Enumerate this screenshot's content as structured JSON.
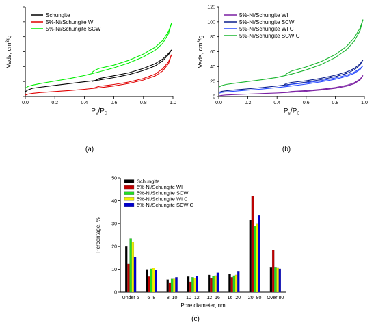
{
  "chart_data": [
    {
      "type": "line",
      "panel_label": "(a)",
      "xlabel_base": "P",
      "xlabel_sub1": "s",
      "xlabel_sep": "/P",
      "xlabel_sub2": "0",
      "ylabel_base": "Vads, cm",
      "ylabel_sup": "3",
      "ylabel_tail": "/g",
      "xlim": [
        0,
        1.0
      ],
      "ylim": [
        0,
        60
      ],
      "xticks": [
        "0.0",
        "0.2",
        "0.4",
        "0.6",
        "0.8",
        "1.0"
      ],
      "yticks": [],
      "legend_position": "top-left",
      "series": [
        {
          "name": "Schungite",
          "color": "#000000",
          "adsorption": [
            [
              0.0,
              3.2
            ],
            [
              0.02,
              4.5
            ],
            [
              0.05,
              5.5
            ],
            [
              0.1,
              6.2
            ],
            [
              0.2,
              7.4
            ],
            [
              0.3,
              8.6
            ],
            [
              0.4,
              9.8
            ],
            [
              0.5,
              11.0
            ],
            [
              0.6,
              12.6
            ],
            [
              0.7,
              14.6
            ],
            [
              0.8,
              17.4
            ],
            [
              0.88,
              20.5
            ],
            [
              0.93,
              23.8
            ],
            [
              0.97,
              28.0
            ],
            [
              0.99,
              31.2
            ]
          ],
          "desorption": [
            [
              0.99,
              31.2
            ],
            [
              0.97,
              28.8
            ],
            [
              0.93,
              25.0
            ],
            [
              0.88,
              22.0
            ],
            [
              0.8,
              18.8
            ],
            [
              0.7,
              15.8
            ],
            [
              0.6,
              13.9
            ],
            [
              0.5,
              12.0
            ],
            [
              0.47,
              10.5
            ],
            [
              0.45,
              10.0
            ]
          ]
        },
        {
          "name": "5%-Ni/Schungite WI",
          "color": "#e00000",
          "adsorption": [
            [
              0.0,
              0.9
            ],
            [
              0.02,
              1.6
            ],
            [
              0.05,
              2.1
            ],
            [
              0.1,
              2.6
            ],
            [
              0.2,
              3.3
            ],
            [
              0.3,
              4.0
            ],
            [
              0.4,
              4.8
            ],
            [
              0.5,
              5.8
            ],
            [
              0.6,
              7.0
            ],
            [
              0.7,
              8.7
            ],
            [
              0.8,
              11.0
            ],
            [
              0.88,
              13.8
            ],
            [
              0.93,
              17.0
            ],
            [
              0.97,
              22.0
            ],
            [
              0.99,
              28.0
            ]
          ],
          "desorption": [
            [
              0.99,
              28.0
            ],
            [
              0.97,
              23.2
            ],
            [
              0.93,
              18.5
            ],
            [
              0.88,
              15.0
            ],
            [
              0.8,
              12.0
            ],
            [
              0.7,
              9.6
            ],
            [
              0.6,
              8.0
            ],
            [
              0.5,
              6.8
            ],
            [
              0.47,
              5.8
            ],
            [
              0.45,
              5.3
            ]
          ]
        },
        {
          "name": "5%-Ni/Schungite SCW",
          "color": "#00ee00",
          "adsorption": [
            [
              0.0,
              5.5
            ],
            [
              0.02,
              6.8
            ],
            [
              0.05,
              7.6
            ],
            [
              0.1,
              8.6
            ],
            [
              0.2,
              10.3
            ],
            [
              0.3,
              12.0
            ],
            [
              0.4,
              14.0
            ],
            [
              0.5,
              16.5
            ],
            [
              0.6,
              19.2
            ],
            [
              0.7,
              22.4
            ],
            [
              0.8,
              26.5
            ],
            [
              0.88,
              31.0
            ],
            [
              0.93,
              35.5
            ],
            [
              0.97,
              42.0
            ],
            [
              0.99,
              49.0
            ]
          ],
          "desorption": [
            [
              0.99,
              49.0
            ],
            [
              0.97,
              43.5
            ],
            [
              0.93,
              37.5
            ],
            [
              0.88,
              33.0
            ],
            [
              0.8,
              28.4
            ],
            [
              0.7,
              24.2
            ],
            [
              0.6,
              21.0
            ],
            [
              0.5,
              18.8
            ],
            [
              0.47,
              17.5
            ],
            [
              0.45,
              16.0
            ]
          ]
        }
      ]
    },
    {
      "type": "line",
      "panel_label": "(b)",
      "xlabel_base": "P",
      "xlabel_sub1": "s",
      "xlabel_sep": "/P",
      "xlabel_sub2": "0",
      "ylabel_base": "Vads, cm",
      "ylabel_sup": "3",
      "ylabel_tail": "/g",
      "xlim": [
        0,
        1.0
      ],
      "ylim": [
        0,
        120
      ],
      "xticks": [
        "0.0",
        "0.2",
        "0.4",
        "0.6",
        "0.8",
        "1.0"
      ],
      "yticks": [
        "0",
        "20",
        "40",
        "60",
        "80",
        "100",
        "120"
      ],
      "legend_position": "top-left",
      "series": [
        {
          "name": "5%-Ni/Schungite WI",
          "color": "#7a1fa2",
          "adsorption": [
            [
              0.0,
              0.9
            ],
            [
              0.02,
              1.5
            ],
            [
              0.05,
              2.0
            ],
            [
              0.1,
              2.5
            ],
            [
              0.2,
              3.2
            ],
            [
              0.3,
              3.9
            ],
            [
              0.4,
              4.7
            ],
            [
              0.5,
              5.7
            ],
            [
              0.6,
              6.9
            ],
            [
              0.7,
              8.6
            ],
            [
              0.8,
              10.9
            ],
            [
              0.88,
              13.8
            ],
            [
              0.93,
              17.0
            ],
            [
              0.97,
              22.0
            ],
            [
              0.99,
              28.0
            ]
          ],
          "desorption": [
            [
              0.99,
              28.0
            ],
            [
              0.97,
              23.0
            ],
            [
              0.93,
              18.3
            ],
            [
              0.88,
              15.0
            ],
            [
              0.8,
              12.0
            ],
            [
              0.7,
              9.5
            ],
            [
              0.6,
              7.9
            ],
            [
              0.5,
              6.7
            ],
            [
              0.47,
              5.8
            ],
            [
              0.45,
              5.3
            ]
          ]
        },
        {
          "name": "5%-Ni/Schungite SCW",
          "color": "#0a1e8c",
          "adsorption": [
            [
              0.0,
              5.5
            ],
            [
              0.02,
              6.8
            ],
            [
              0.05,
              7.6
            ],
            [
              0.1,
              8.6
            ],
            [
              0.2,
              10.3
            ],
            [
              0.3,
              12.0
            ],
            [
              0.4,
              14.0
            ],
            [
              0.5,
              16.5
            ],
            [
              0.6,
              19.2
            ],
            [
              0.7,
              22.4
            ],
            [
              0.8,
              26.5
            ],
            [
              0.88,
              31.0
            ],
            [
              0.93,
              35.5
            ],
            [
              0.97,
              42.0
            ],
            [
              0.99,
              49.0
            ]
          ],
          "desorption": [
            [
              0.99,
              49.0
            ],
            [
              0.97,
              43.5
            ],
            [
              0.93,
              37.5
            ],
            [
              0.88,
              33.0
            ],
            [
              0.8,
              28.4
            ],
            [
              0.7,
              24.2
            ],
            [
              0.6,
              21.0
            ],
            [
              0.5,
              18.8
            ],
            [
              0.47,
              17.5
            ],
            [
              0.45,
              16.0
            ]
          ]
        },
        {
          "name": "5%-Ni/Schungite WI C",
          "color": "#2a4bff",
          "adsorption": [
            [
              0.0,
              4.2
            ],
            [
              0.02,
              5.4
            ],
            [
              0.05,
              6.1
            ],
            [
              0.1,
              7.0
            ],
            [
              0.2,
              8.5
            ],
            [
              0.3,
              10.0
            ],
            [
              0.4,
              11.8
            ],
            [
              0.5,
              14.0
            ],
            [
              0.6,
              16.5
            ],
            [
              0.7,
              19.5
            ],
            [
              0.8,
              23.0
            ],
            [
              0.88,
              27.0
            ],
            [
              0.93,
              31.0
            ],
            [
              0.97,
              36.0
            ],
            [
              0.99,
              41.0
            ]
          ],
          "desorption": [
            [
              0.99,
              41.0
            ],
            [
              0.97,
              37.2
            ],
            [
              0.93,
              32.5
            ],
            [
              0.88,
              28.6
            ],
            [
              0.8,
              24.6
            ],
            [
              0.7,
              21.0
            ],
            [
              0.6,
              18.2
            ],
            [
              0.5,
              16.2
            ],
            [
              0.47,
              15.0
            ],
            [
              0.45,
              13.8
            ]
          ]
        },
        {
          "name": "5%-Ni/Schungite SCW C",
          "color": "#19b52e",
          "adsorption": [
            [
              0.0,
              12.5
            ],
            [
              0.02,
              14.5
            ],
            [
              0.05,
              16.0
            ],
            [
              0.1,
              17.5
            ],
            [
              0.2,
              20.0
            ],
            [
              0.3,
              22.5
            ],
            [
              0.4,
              25.5
            ],
            [
              0.5,
              30.0
            ],
            [
              0.6,
              35.5
            ],
            [
              0.7,
              42.5
            ],
            [
              0.8,
              52.0
            ],
            [
              0.88,
              63.0
            ],
            [
              0.93,
              74.0
            ],
            [
              0.97,
              88.0
            ],
            [
              0.99,
              103.0
            ]
          ],
          "desorption": [
            [
              0.99,
              103.0
            ],
            [
              0.97,
              91.5
            ],
            [
              0.93,
              78.5
            ],
            [
              0.88,
              67.5
            ],
            [
              0.8,
              56.0
            ],
            [
              0.7,
              46.5
            ],
            [
              0.6,
              39.5
            ],
            [
              0.5,
              34.0
            ],
            [
              0.47,
              31.0
            ],
            [
              0.45,
              28.0
            ]
          ]
        }
      ]
    },
    {
      "type": "bar",
      "panel_label": "(c)",
      "xlabel": "Pore diameter, nm",
      "ylabel": "Percentage, %",
      "ylim": [
        0,
        50
      ],
      "yticks": [
        "0",
        "10",
        "20",
        "30",
        "40",
        "50"
      ],
      "legend_position": "top-left",
      "categories": [
        "Under 6",
        "6–8",
        "8–10",
        "10–12",
        "12–16",
        "16–20",
        "20–80",
        "Over 80"
      ],
      "series": [
        {
          "name": "Schungite",
          "color": "#000000",
          "values": [
            20.0,
            10.0,
            5.5,
            6.8,
            7.5,
            7.8,
            31.5,
            11.0
          ]
        },
        {
          "name": "5%-Ni/Schungite WI",
          "color": "#c00000",
          "values": [
            12.3,
            6.8,
            4.2,
            4.5,
            6.0,
            6.5,
            42.0,
            18.5
          ]
        },
        {
          "name": "5%-Ni/Schungite SCW",
          "color": "#22dd22",
          "values": [
            23.5,
            10.2,
            5.8,
            6.5,
            7.0,
            7.2,
            29.0,
            11.0
          ]
        },
        {
          "name": "5%-Ni/Schungite WI C",
          "color": "#f0f000",
          "values": [
            22.0,
            10.5,
            5.8,
            6.2,
            7.2,
            7.5,
            30.0,
            10.8
          ]
        },
        {
          "name": "5%-Ni/Schungite SCW C",
          "color": "#0000cc",
          "values": [
            15.5,
            9.7,
            6.5,
            7.0,
            8.5,
            9.2,
            33.8,
            10.2
          ]
        }
      ]
    }
  ]
}
